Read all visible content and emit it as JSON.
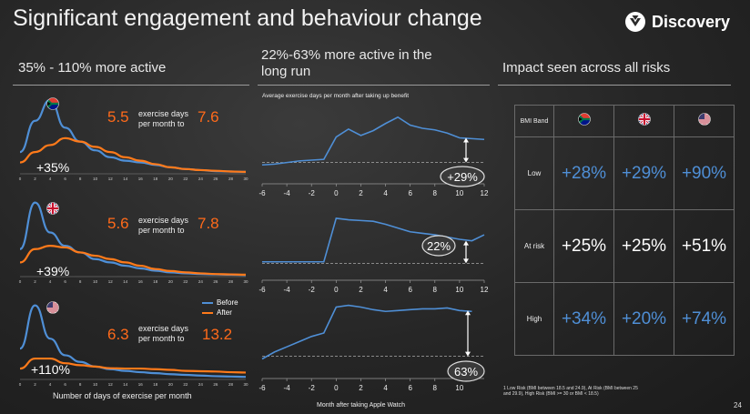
{
  "title": "Significant engagement and behaviour change",
  "logo": {
    "text": "Discovery"
  },
  "section1": {
    "heading": "35% - 110% more active",
    "xaxis_title": "Number of days of exercise per month"
  },
  "section2": {
    "heading_line1": "22%-63% more active in the",
    "heading_line2": "long run",
    "subtitle": "Average exercise days per month after taking up benefit",
    "xaxis_title": "Month after taking Apple Watch"
  },
  "section3": {
    "heading": "Impact seen across all risks"
  },
  "colors": {
    "before": "#4f8fd6",
    "after": "#ff7a1a",
    "accent_blue": "#4f8fd6"
  },
  "legend": {
    "before": "Before",
    "after": "After"
  },
  "panels_left": [
    {
      "flag_icon": "south-africa-flag-icon",
      "from": "5.5",
      "to": "7.6",
      "label1": "exercise days",
      "label2": "per month to",
      "increase": "+35%"
    },
    {
      "flag_icon": "uk-flag-icon",
      "from": "5.6",
      "to": "7.8",
      "label1": "exercise days",
      "label2": "per month to",
      "increase": "+39%"
    },
    {
      "flag_icon": "us-flag-icon",
      "from": "6.3",
      "to": "13.2",
      "label1": "exercise days",
      "label2": "per month to",
      "increase": "+110%"
    }
  ],
  "chart_data": [
    {
      "type": "area",
      "chart_id": "dist-sa",
      "x": [
        0,
        2,
        4,
        6,
        8,
        10,
        12,
        14,
        16,
        18,
        20,
        22,
        24,
        26,
        28,
        30
      ],
      "series": [
        {
          "name": "Before",
          "values": [
            6,
            15,
            21,
            13,
            9,
            6.5,
            4.5,
            3.5,
            3,
            2.3,
            1.6,
            1.1,
            0.8,
            0.5,
            0.4,
            0.3
          ]
        },
        {
          "name": "After",
          "values": [
            3,
            6,
            8,
            10,
            9,
            7.5,
            6,
            4.5,
            3.5,
            2.5,
            1.6,
            1.1,
            0.8,
            0.6,
            0.4,
            0.3
          ]
        }
      ],
      "ymax": 22
    },
    {
      "type": "area",
      "chart_id": "dist-uk",
      "x": [
        0,
        2,
        4,
        6,
        8,
        10,
        12,
        14,
        16,
        18,
        20,
        22,
        24,
        26,
        28,
        30
      ],
      "series": [
        {
          "name": "Before",
          "values": [
            8,
            22,
            13,
            9,
            7,
            5,
            4,
            3,
            2.2,
            1.5,
            1,
            0.7,
            0.5,
            0.4,
            0.3,
            0.2
          ]
        },
        {
          "name": "After",
          "values": [
            4,
            8,
            9,
            8.5,
            7,
            6,
            5,
            4,
            3,
            2,
            1.4,
            1,
            0.7,
            0.5,
            0.4,
            0.3
          ]
        }
      ],
      "ymax": 23
    },
    {
      "type": "area",
      "chart_id": "dist-us",
      "x": [
        0,
        2,
        4,
        6,
        8,
        10,
        12,
        14,
        16,
        18,
        20,
        22,
        24,
        26,
        28,
        30
      ],
      "series": [
        {
          "name": "Before",
          "values": [
            9,
            22,
            12,
            7,
            5,
            3.6,
            2.8,
            2.3,
            1.9,
            1.6,
            1.3,
            1.1,
            0.9,
            0.7,
            0.6,
            0.5
          ]
        },
        {
          "name": "After",
          "values": [
            3,
            6,
            6,
            4.6,
            4,
            3.6,
            3.1,
            3,
            3,
            2.8,
            2.6,
            2.3,
            2.2,
            2.1,
            1.9,
            1.8
          ]
        }
      ],
      "ymax": 23
    },
    {
      "type": "line",
      "chart_id": "trend-1",
      "x": [
        -6,
        -5,
        -4,
        -3,
        -2,
        -1,
        0,
        1,
        2,
        3,
        4,
        5,
        6,
        7,
        8,
        9,
        10,
        11,
        12
      ],
      "values": [
        6,
        6.1,
        6.3,
        6.5,
        6.6,
        6.7,
        9.5,
        10.5,
        9.7,
        10.3,
        11.2,
        12,
        11,
        10.6,
        10.4,
        10,
        9.4,
        9.3,
        9.2
      ],
      "baseline": 6.3,
      "annotation": "+29%",
      "ylim": [
        5,
        13
      ]
    },
    {
      "type": "line",
      "chart_id": "trend-2",
      "x": [
        -6,
        -5,
        -4,
        -3,
        -2,
        -1,
        0,
        1,
        2,
        3,
        4,
        5,
        6,
        7,
        8,
        9,
        10,
        11,
        12
      ],
      "values": [
        6,
        6,
        6,
        6,
        6,
        6,
        11.8,
        11.6,
        11.5,
        11.4,
        11,
        10.5,
        10,
        9.8,
        9.6,
        9.3,
        9,
        8.8,
        9.6
      ],
      "baseline": 5.8,
      "annotation": "22%",
      "ylim": [
        5,
        13
      ]
    },
    {
      "type": "line",
      "chart_id": "trend-3",
      "x": [
        -6,
        -5,
        -4,
        -3,
        -2,
        -1,
        0,
        1,
        2,
        3,
        4,
        5,
        6,
        7,
        8,
        9,
        10,
        11
      ],
      "values": [
        6,
        6.8,
        7.4,
        8,
        8.6,
        9,
        12,
        12.2,
        12,
        11.7,
        11.5,
        11.6,
        11.7,
        11.8,
        11.8,
        11.9,
        11.6,
        11.5
      ],
      "baseline": 6.3,
      "annotation": "63%",
      "ylim": [
        5,
        13
      ]
    }
  ],
  "xticks_left": [
    "0",
    "2",
    "4",
    "6",
    "8",
    "10",
    "12",
    "14",
    "16",
    "18",
    "20",
    "22",
    "24",
    "26",
    "28",
    "30"
  ],
  "xticks_trend_12": [
    "-6",
    "-4",
    "-2",
    "0",
    "2",
    "4",
    "6",
    "8",
    "10",
    "12"
  ],
  "xticks_trend_10": [
    "-6",
    "-4",
    "-2",
    "0",
    "2",
    "4",
    "6",
    "8",
    "10"
  ],
  "impact_table": {
    "header": {
      "col0": "BMI Band",
      "flags": [
        "south-africa-flag-icon",
        "uk-flag-icon",
        "us-flag-icon"
      ]
    },
    "rows": [
      {
        "label": "Low",
        "values": [
          "+28%",
          "+29%",
          "+90%"
        ],
        "color": "#4f8fd6"
      },
      {
        "label": "At risk",
        "values": [
          "+25%",
          "+25%",
          "+51%"
        ],
        "color": "#ffffff"
      },
      {
        "label": "High",
        "values": [
          "+34%",
          "+20%",
          "+74%"
        ],
        "color": "#4f8fd6"
      }
    ]
  },
  "footnote": {
    "line1": "1 Low Risk (BMI between 18.5 and 24.9), At Risk (BMI between 25",
    "line2": "and 29.9), High Risk (BMI >= 30 or BMI < 18.5)"
  },
  "page_number": "24"
}
